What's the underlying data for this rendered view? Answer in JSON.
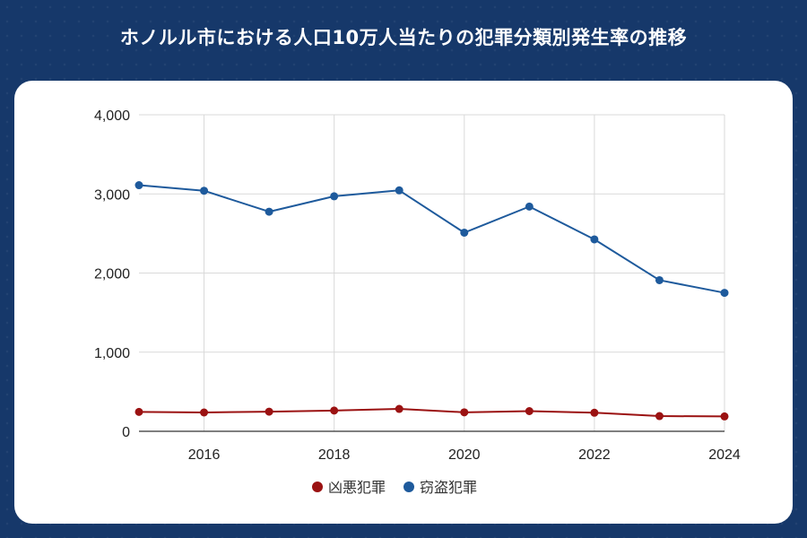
{
  "page": {
    "title": "ホノルル市における人口10万人当たりの犯罪分類別発生率の推移"
  },
  "colors": {
    "background": "#16386a",
    "card": "#ffffff",
    "grid": "#d9d9d9",
    "violent": "#9b1212",
    "property": "#1e5a9c"
  },
  "chart_data": {
    "type": "line",
    "title": "ホノルル市における人口10万人当たりの犯罪分類別発生率の推移",
    "x": [
      2015,
      2016,
      2017,
      2018,
      2019,
      2020,
      2021,
      2022,
      2023,
      2024
    ],
    "xlim": [
      2015,
      2024
    ],
    "ylim": [
      0,
      4000
    ],
    "x_ticks": [
      2016,
      2018,
      2020,
      2022,
      2024
    ],
    "x_tick_labels": [
      "2016",
      "2018",
      "2020",
      "2022",
      "2024"
    ],
    "y_ticks": [
      0,
      1000,
      2000,
      3000,
      4000
    ],
    "y_tick_labels": [
      "0",
      "1,000",
      "2,000",
      "3,000",
      "4,000"
    ],
    "grid": true,
    "legend_position": "bottom",
    "series": [
      {
        "name": "凶悪犯罪",
        "color": "#9b1212",
        "values": [
          245,
          238,
          248,
          262,
          283,
          240,
          255,
          235,
          192,
          188
        ]
      },
      {
        "name": "窃盗犯罪",
        "color": "#1e5a9c",
        "values": [
          3110,
          3040,
          2775,
          2970,
          3045,
          2510,
          2840,
          2425,
          1910,
          1750
        ]
      }
    ]
  }
}
